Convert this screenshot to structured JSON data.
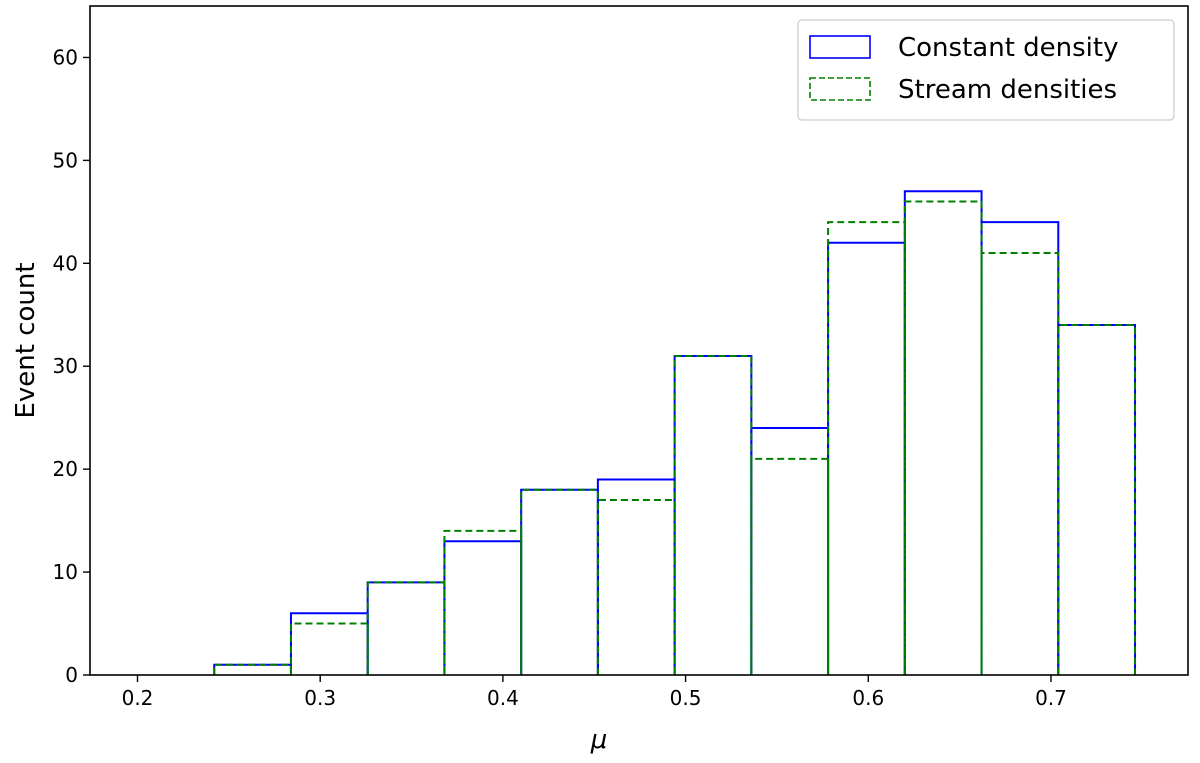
{
  "chart_data": {
    "type": "histogram",
    "title": "",
    "xlabel": "μ",
    "ylabel": "Event count",
    "xlim": [
      0.174,
      1.0
    ],
    "ylim": [
      0,
      65
    ],
    "xticks": [
      0.2,
      0.3,
      0.4,
      0.5,
      0.6,
      0.7
    ],
    "xtick_labels": [
      "0.2",
      "0.3",
      "0.4",
      "0.5",
      "0.6",
      "0.7"
    ],
    "yticks": [
      0,
      10,
      20,
      30,
      40,
      50,
      60
    ],
    "ytick_labels": [
      "0",
      "10",
      "20",
      "30",
      "40",
      "50",
      "60"
    ],
    "grid": false,
    "legend_position": "top-right",
    "bin_edges": [
      0.2,
      0.242,
      0.284,
      0.326,
      0.368,
      0.41,
      0.452,
      0.494,
      0.536,
      0.578,
      0.62,
      0.662,
      0.704,
      0.746
    ],
    "series": [
      {
        "name": "Constant density",
        "color": "#0000ff",
        "line_style": "solid",
        "values": [
          0,
          1,
          6,
          9,
          13,
          18,
          19,
          31,
          24,
          42,
          47,
          44,
          34
        ]
      },
      {
        "name": "Stream densities",
        "color": "#008000",
        "line_style": "dashed",
        "values": [
          0,
          1,
          5,
          9,
          14,
          18,
          17,
          31,
          21,
          44,
          46,
          41,
          34
        ]
      }
    ]
  }
}
